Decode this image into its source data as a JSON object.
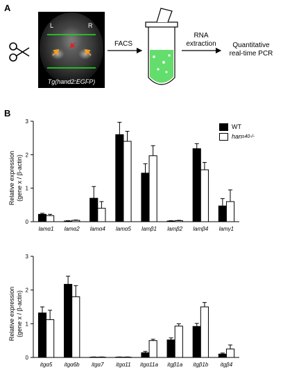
{
  "panel_a": {
    "label": "A",
    "image_left_label": "L",
    "image_right_label": "R",
    "image_caption": "Tg(hand2:EGFP)",
    "step1": "FACS",
    "step2_line1": "RNA",
    "step2_line2": "extraction",
    "step3_line1": "Quantitative",
    "step3_line2": "real-time PCR",
    "colors": {
      "gfp": "#2fd13a",
      "green_line": "#22cc22",
      "arrow_orange": "#f5a020",
      "arrow_red": "#e02020"
    }
  },
  "panel_b": {
    "label": "B",
    "legend": [
      {
        "name": "WT",
        "color": "#000000"
      },
      {
        "name": "han",
        "superscript": "s40-/-",
        "color": "#ffffff"
      }
    ]
  },
  "chart_data": [
    {
      "type": "bar",
      "ylabel_line1": "Relative expression",
      "ylabel_line2": "(gene x / β-actin)",
      "ylim": [
        0,
        3
      ],
      "yticks": [
        "0",
        "1",
        "2",
        "3"
      ],
      "categories": [
        "lamα1",
        "lamα2",
        "lamα4",
        "lamα5",
        "lamβ1",
        "lamβ2",
        "lamβ4",
        "lamγ1"
      ],
      "series": [
        {
          "name": "WT",
          "values": [
            0.22,
            0.02,
            0.7,
            2.6,
            1.45,
            0.02,
            2.18,
            0.47
          ],
          "errors": [
            0.03,
            0.01,
            0.35,
            0.37,
            0.28,
            0.01,
            0.15,
            0.22
          ]
        },
        {
          "name": "han s40-/-",
          "values": [
            0.18,
            0.04,
            0.4,
            2.4,
            1.97,
            0.03,
            1.55,
            0.6
          ],
          "errors": [
            0.04,
            0.01,
            0.2,
            0.3,
            0.3,
            0.01,
            0.22,
            0.35
          ]
        }
      ]
    },
    {
      "type": "bar",
      "ylabel_line1": "Relative expression",
      "ylabel_line2": "(gene x / β-actin)",
      "ylim": [
        0,
        3
      ],
      "yticks": [
        "0",
        "1",
        "2",
        "3"
      ],
      "categories": [
        "itgα5",
        "itgα6b",
        "itgα7",
        "itgα11",
        "itgα11a",
        "itgβ1a",
        "itgβ1b",
        "itgβ4"
      ],
      "series": [
        {
          "name": "WT",
          "values": [
            1.32,
            2.17,
            0.01,
            0.01,
            0.14,
            0.52,
            0.92,
            0.1
          ],
          "errors": [
            0.18,
            0.24,
            0.005,
            0.005,
            0.04,
            0.06,
            0.09,
            0.03
          ]
        },
        {
          "name": "han s40-/-",
          "values": [
            1.12,
            1.8,
            0.01,
            0.01,
            0.5,
            0.93,
            1.5,
            0.25
          ],
          "errors": [
            0.28,
            0.33,
            0.005,
            0.005,
            0.04,
            0.07,
            0.13,
            0.12
          ]
        }
      ]
    }
  ]
}
